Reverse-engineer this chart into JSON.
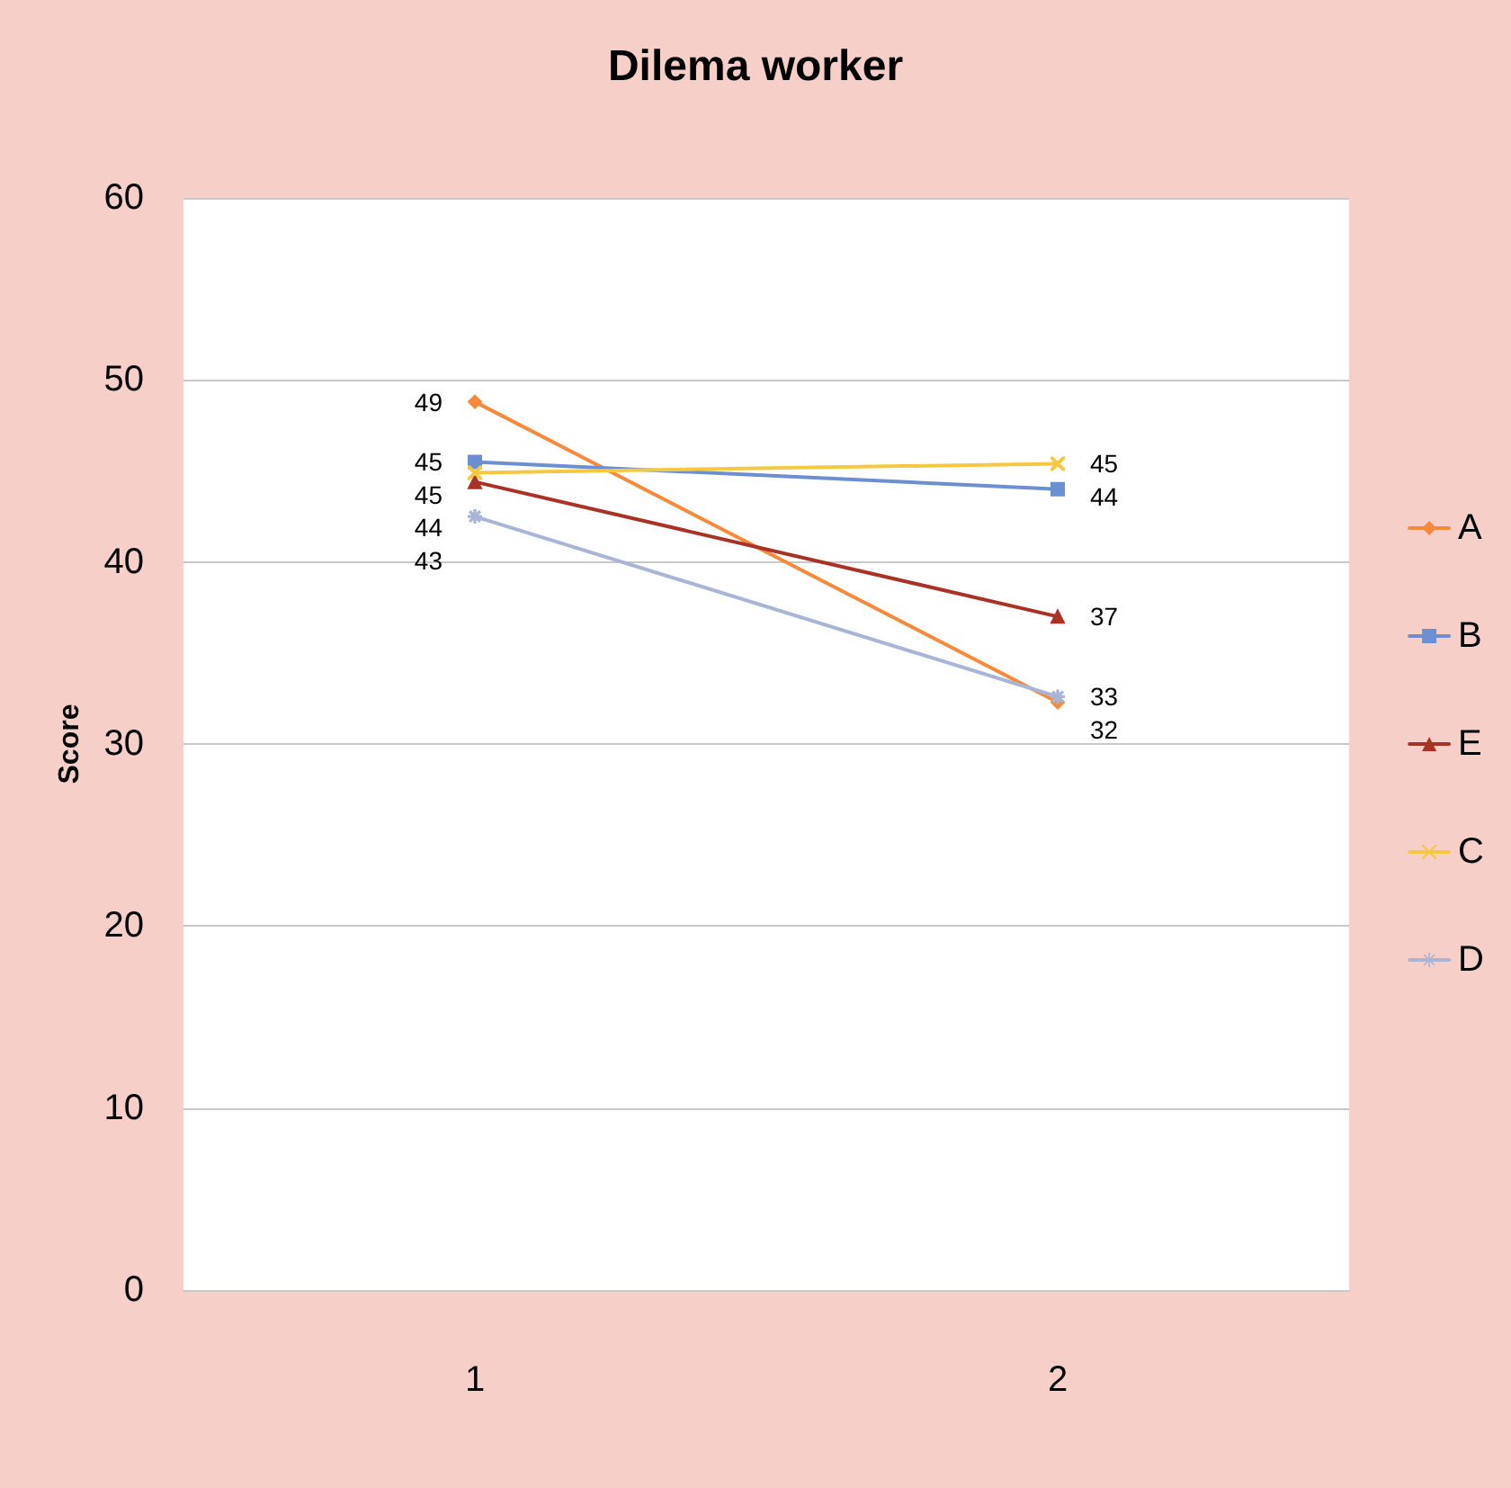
{
  "chart_data": {
    "type": "line",
    "title": "Dilema worker",
    "ylabel": "Score",
    "categories": [
      "1",
      "2"
    ],
    "series": [
      {
        "name": "A",
        "color": "#f58a3c",
        "marker": "diamond",
        "values": [
          48.8,
          32.3
        ],
        "value_labels": [
          "49",
          "32"
        ]
      },
      {
        "name": "B",
        "color": "#6b8fd1",
        "marker": "square",
        "values": [
          45.5,
          44.0
        ],
        "value_labels": [
          "45",
          "44"
        ]
      },
      {
        "name": "E",
        "color": "#a93226",
        "marker": "triangle",
        "values": [
          44.4,
          37.0
        ],
        "value_labels": [
          "44",
          "37"
        ]
      },
      {
        "name": "C",
        "color": "#f5c842",
        "marker": "cross",
        "values": [
          44.9,
          45.4
        ],
        "value_labels": [
          "45",
          "45"
        ]
      },
      {
        "name": "D",
        "color": "#a9b5d6",
        "marker": "star",
        "values": [
          42.5,
          32.6
        ],
        "value_labels": [
          "43",
          "33"
        ]
      }
    ],
    "ylim": [
      0,
      60
    ],
    "yticks": [
      0,
      10,
      20,
      30,
      40,
      50,
      60
    ],
    "grid": "y",
    "legend": "right"
  }
}
